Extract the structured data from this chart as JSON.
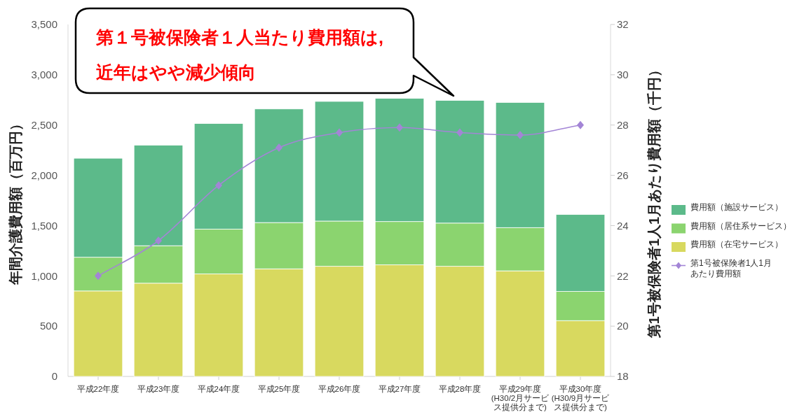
{
  "chart_data": {
    "type": "bar",
    "stacked": true,
    "categories": [
      "平成22年度",
      "平成23年度",
      "平成24年度",
      "平成25年度",
      "平成26年度",
      "平成27年度",
      "平成28年度",
      "平成29年度(H30/2月サービス提供分まで)",
      "平成30年度(H30/9月サービス提供分まで)"
    ],
    "series": [
      {
        "name": "費用額（在宅サービス）",
        "color": "#d8d95f",
        "values": [
          850,
          927,
          1020,
          1070,
          1095,
          1110,
          1095,
          1050,
          555
        ]
      },
      {
        "name": "費用額（居住系サービス）",
        "color": "#8bd46f",
        "values": [
          335,
          373,
          445,
          460,
          450,
          430,
          430,
          430,
          290
        ]
      },
      {
        "name": "費用額（施設サービス）",
        "color": "#5cba8a",
        "values": [
          985,
          1000,
          1050,
          1130,
          1190,
          1225,
          1220,
          1245,
          765
        ]
      },
      {
        "name": "第1号被保険者1人1月あたり費用額",
        "type": "line",
        "axis": "y2",
        "color": "#a385d6",
        "values": [
          22.0,
          23.4,
          25.6,
          27.1,
          27.7,
          27.9,
          27.7,
          27.6,
          28.0
        ]
      }
    ],
    "marker": "diamond",
    "ylabel": "年間介護費用額（百万円）",
    "y2label": "第1号被保険者1人1月あたり費用額（千円）",
    "ylim": [
      0,
      3500
    ],
    "yticks": [
      0,
      500,
      {
        "value": 1000,
        "label": "1,000"
      },
      {
        "value": 1500,
        "label": "1,500"
      },
      {
        "value": 2000,
        "label": "2,000"
      },
      {
        "value": 2500,
        "label": "2,500"
      },
      {
        "value": 3000,
        "label": "3,000"
      },
      {
        "value": 3500,
        "label": "3,500"
      }
    ],
    "y2lim": [
      18,
      32
    ],
    "y2ticks": [
      18,
      20,
      22,
      24,
      26,
      28,
      30,
      32
    ],
    "legend": "right",
    "annotations": [
      "第１号被保険者１人当たり費用額は,",
      "近年はやや減少傾向"
    ]
  }
}
